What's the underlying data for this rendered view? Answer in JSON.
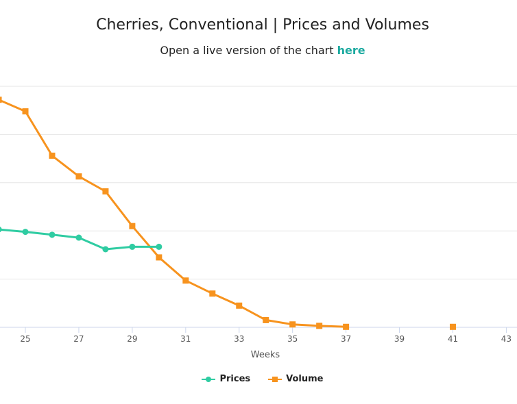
{
  "page": {
    "title": "Cherries, Conventional | Prices and Volumes",
    "subtitle_prefix": "Open a live version of the chart ",
    "subtitle_link": "here"
  },
  "colors": {
    "prices": "#2fcca2",
    "volume": "#f7931e",
    "grid": "#e6e6e6",
    "axis": "#ccd6eb",
    "link": "#1aa99f"
  },
  "chart_data": {
    "type": "line",
    "xlabel": "Weeks",
    "x_ticks": [
      25,
      27,
      29,
      31,
      33,
      35,
      37,
      39,
      41,
      43
    ],
    "xlim": [
      24.05,
      43.4
    ],
    "ylim": [
      0,
      5
    ],
    "grid": true,
    "legend_position": "bottom",
    "series": [
      {
        "name": "Prices",
        "marker": "circle",
        "points": [
          [
            24,
            2.03
          ],
          [
            25,
            1.98
          ],
          [
            26,
            1.92
          ],
          [
            27,
            1.86
          ],
          [
            28,
            1.62
          ],
          [
            29,
            1.67
          ],
          [
            30,
            1.67
          ]
        ]
      },
      {
        "name": "Volume",
        "marker": "square",
        "points": [
          [
            24,
            4.72
          ],
          [
            25,
            4.48
          ],
          [
            26,
            3.56
          ],
          [
            27,
            3.13
          ],
          [
            28,
            2.82
          ],
          [
            29,
            2.1
          ],
          [
            30,
            1.45
          ],
          [
            31,
            0.97
          ],
          [
            32,
            0.7
          ],
          [
            33,
            0.45
          ],
          [
            34,
            0.15
          ],
          [
            35,
            0.06
          ],
          [
            36,
            0.03
          ],
          [
            37,
            0.01
          ],
          [
            41,
            0.01
          ]
        ]
      }
    ]
  }
}
